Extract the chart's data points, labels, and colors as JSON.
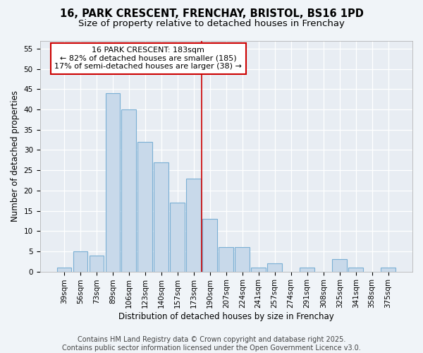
{
  "title_line1": "16, PARK CRESCENT, FRENCHAY, BRISTOL, BS16 1PD",
  "title_line2": "Size of property relative to detached houses in Frenchay",
  "xlabel": "Distribution of detached houses by size in Frenchay",
  "ylabel": "Number of detached properties",
  "categories": [
    "39sqm",
    "56sqm",
    "73sqm",
    "89sqm",
    "106sqm",
    "123sqm",
    "140sqm",
    "157sqm",
    "173sqm",
    "190sqm",
    "207sqm",
    "224sqm",
    "241sqm",
    "257sqm",
    "274sqm",
    "291sqm",
    "308sqm",
    "325sqm",
    "341sqm",
    "358sqm",
    "375sqm"
  ],
  "values": [
    1,
    5,
    4,
    44,
    40,
    32,
    27,
    17,
    23,
    13,
    6,
    6,
    1,
    2,
    0,
    1,
    0,
    3,
    1,
    0,
    1
  ],
  "bar_color": "#c8d9ea",
  "bar_edge_color": "#7aafd4",
  "bar_linewidth": 0.8,
  "ylim": [
    0,
    57
  ],
  "yticks": [
    0,
    5,
    10,
    15,
    20,
    25,
    30,
    35,
    40,
    45,
    50,
    55
  ],
  "vline_color": "#cc0000",
  "annotation_box_text_line1": "16 PARK CRESCENT: 183sqm",
  "annotation_box_text_line2": "← 82% of detached houses are smaller (185)",
  "annotation_box_text_line3": "17% of semi-detached houses are larger (38) →",
  "annotation_box_color": "#cc0000",
  "background_color": "#f0f4f8",
  "plot_bg_color": "#e8edf3",
  "footer_text": "Contains HM Land Registry data © Crown copyright and database right 2025.\nContains public sector information licensed under the Open Government Licence v3.0.",
  "title_fontsize": 10.5,
  "subtitle_fontsize": 9.5,
  "axis_label_fontsize": 8.5,
  "tick_fontsize": 7.5,
  "annotation_fontsize": 8,
  "footer_fontsize": 7
}
